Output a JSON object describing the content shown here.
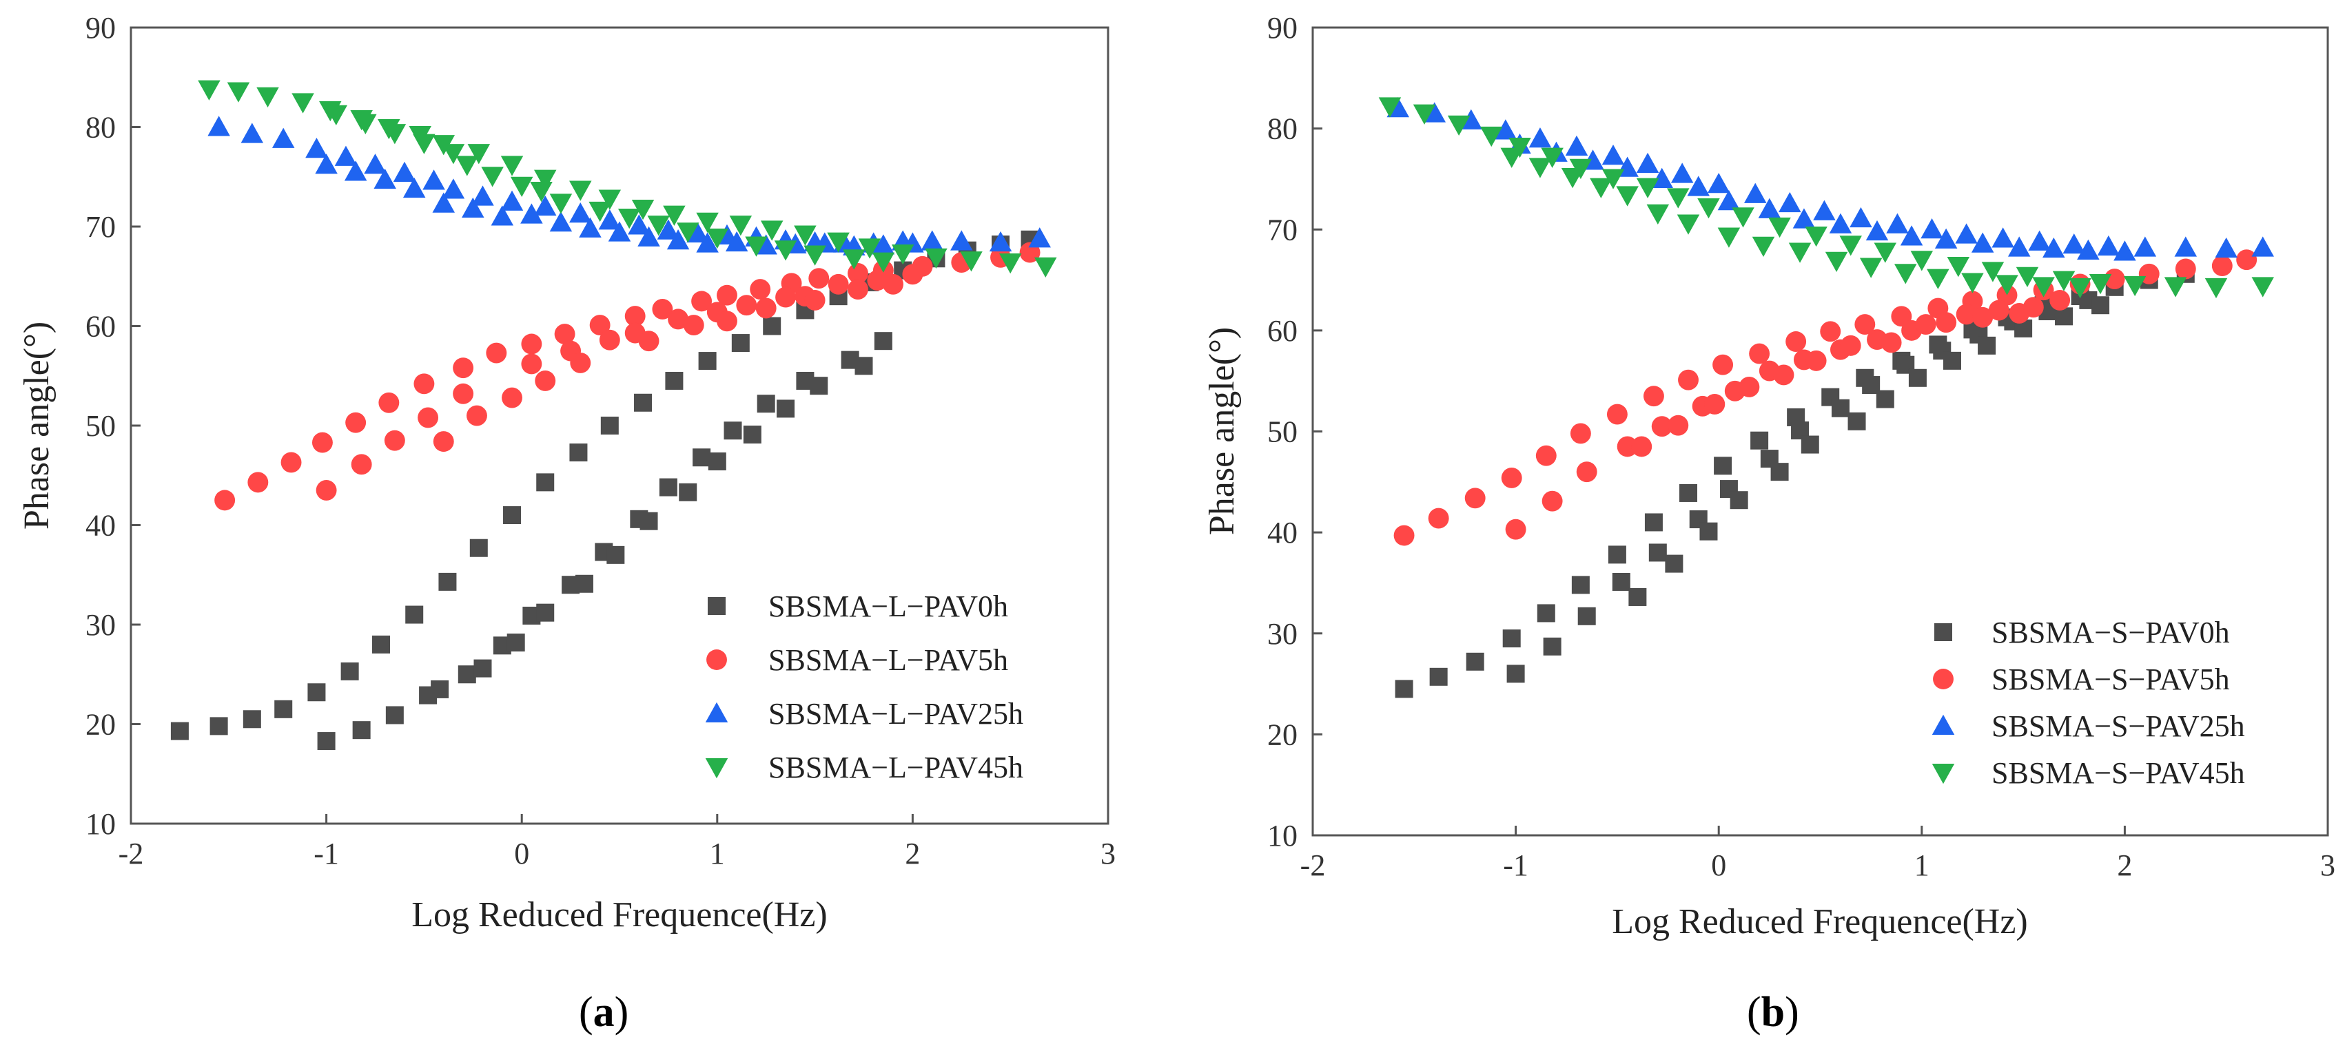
{
  "figure": {
    "panel_labels": [
      "a",
      "b"
    ]
  },
  "chart_data": [
    {
      "panel": "a",
      "type": "scatter",
      "title": "",
      "xlabel": "Log Reduced Frequence(Hz)",
      "ylabel": "Phase angle(°)",
      "xlim": [
        -2,
        3
      ],
      "ylim": [
        10,
        90
      ],
      "xticks": [
        "-2",
        "-1",
        "0",
        "1",
        "2",
        "3"
      ],
      "yticks": [
        "10",
        "20",
        "30",
        "40",
        "50",
        "60",
        "70",
        "80",
        "90"
      ],
      "grid": false,
      "legend_position": "bottom-right",
      "series": [
        {
          "name": "SBSMA−L−PAV0h",
          "marker": "square",
          "color": "#4d4d4d",
          "x": [
            -1.75,
            -1.55,
            -1.38,
            -1.22,
            -1.05,
            -0.88,
            -0.72,
            -0.55,
            -0.38,
            -0.22,
            -0.05,
            0.12,
            0.29,
            0.45,
            0.62,
            0.78,
            0.95,
            1.12,
            1.28,
            1.45,
            1.62,
            1.78,
            1.95,
            2.12,
            2.28,
            2.45,
            2.6,
            -1.0,
            -0.82,
            -0.65,
            -0.48,
            -0.42,
            -0.28,
            -0.2,
            -0.1,
            -0.03,
            0.05,
            0.12,
            0.25,
            0.32,
            0.42,
            0.48,
            0.6,
            0.65,
            0.75,
            0.85,
            0.92,
            1.0,
            1.08,
            1.18,
            1.25,
            1.35,
            1.45,
            1.52,
            1.68,
            1.75,
            1.85
          ],
          "y": [
            19.3,
            19.8,
            20.5,
            21.5,
            23.2,
            25.3,
            28.0,
            31.0,
            34.3,
            37.7,
            41.0,
            44.3,
            47.3,
            50.0,
            52.3,
            54.5,
            56.5,
            58.3,
            60.0,
            61.6,
            63.0,
            64.4,
            65.6,
            66.8,
            67.6,
            68.2,
            68.7,
            18.3,
            19.4,
            20.9,
            22.9,
            23.5,
            25.0,
            25.6,
            27.9,
            28.2,
            30.9,
            31.2,
            34.0,
            34.1,
            37.3,
            37.0,
            40.6,
            40.4,
            43.8,
            43.3,
            46.8,
            46.4,
            49.5,
            49.1,
            52.2,
            51.7,
            54.5,
            54.0,
            56.6,
            56.0,
            58.5
          ]
        },
        {
          "name": "SBSMA−L−PAV5h",
          "marker": "circle",
          "color": "#ff4747",
          "x": [
            -1.52,
            -1.35,
            -1.18,
            -1.02,
            -0.85,
            -0.68,
            -0.5,
            -0.3,
            -0.13,
            0.05,
            0.22,
            0.4,
            0.58,
            0.72,
            0.92,
            1.05,
            1.22,
            1.38,
            1.52,
            1.72,
            1.85,
            2.05,
            2.25,
            2.45,
            2.6,
            -1.0,
            -0.82,
            -0.65,
            -0.48,
            -0.4,
            -0.3,
            -0.23,
            -0.05,
            0.05,
            0.12,
            0.25,
            0.3,
            0.45,
            0.58,
            0.65,
            0.8,
            0.88,
            1.0,
            1.05,
            1.15,
            1.25,
            1.35,
            1.45,
            1.5,
            1.62,
            1.72,
            1.82,
            1.9,
            2.0
          ],
          "y": [
            42.5,
            44.3,
            46.3,
            48.3,
            50.3,
            52.3,
            54.2,
            55.8,
            57.3,
            58.2,
            59.2,
            60.1,
            61.0,
            61.7,
            62.5,
            63.1,
            63.7,
            64.3,
            64.8,
            65.3,
            65.6,
            66.0,
            66.4,
            66.9,
            67.4,
            43.5,
            46.1,
            48.5,
            50.8,
            48.4,
            53.2,
            51.0,
            52.8,
            56.2,
            54.5,
            57.5,
            56.3,
            58.6,
            59.3,
            58.5,
            60.7,
            60.1,
            61.4,
            60.5,
            62.1,
            61.8,
            62.9,
            63.0,
            62.6,
            64.2,
            63.7,
            64.6,
            64.2,
            65.2
          ]
        },
        {
          "name": "SBSMA−L−PAV25h",
          "marker": "triangle-up",
          "color": "#1f64f0",
          "x": [
            -1.55,
            -1.38,
            -1.22,
            -1.05,
            -0.9,
            -0.75,
            -0.6,
            -0.45,
            -0.35,
            -0.2,
            -0.05,
            0.12,
            0.3,
            0.45,
            0.6,
            0.75,
            0.9,
            1.05,
            1.2,
            1.35,
            1.5,
            1.65,
            1.8,
            1.95,
            2.1,
            2.25,
            2.45,
            2.65,
            -1.0,
            -0.85,
            -0.7,
            -0.55,
            -0.4,
            -0.25,
            -0.1,
            0.05,
            0.2,
            0.35,
            0.5,
            0.65,
            0.8,
            0.95,
            1.1,
            1.25,
            1.4,
            1.55,
            1.7,
            1.85,
            2.0
          ],
          "y": [
            80.0,
            79.3,
            78.8,
            77.8,
            77.0,
            76.2,
            75.4,
            74.6,
            73.7,
            73.0,
            72.5,
            72.0,
            71.3,
            70.6,
            70.1,
            69.6,
            69.3,
            69.1,
            68.9,
            68.6,
            68.4,
            68.3,
            68.3,
            68.5,
            68.5,
            68.5,
            68.4,
            68.8,
            76.2,
            75.5,
            74.7,
            73.8,
            72.3,
            71.8,
            71.0,
            71.2,
            70.4,
            69.8,
            69.4,
            68.9,
            68.6,
            68.3,
            68.4,
            68.1,
            68.2,
            68.3,
            68.0,
            68.1,
            68.3
          ]
        },
        {
          "name": "SBSMA−L−PAV45h",
          "marker": "triangle-down",
          "color": "#26b04a",
          "x": [
            -1.6,
            -1.45,
            -1.3,
            -1.12,
            -0.98,
            -0.82,
            -0.68,
            -0.52,
            -0.4,
            -0.22,
            -0.05,
            0.12,
            0.3,
            0.45,
            0.62,
            0.78,
            0.95,
            1.12,
            1.28,
            1.45,
            1.62,
            1.78,
            1.95,
            2.12,
            2.3,
            2.5,
            2.68,
            -0.95,
            -0.8,
            -0.65,
            -0.5,
            -0.35,
            -0.28,
            -0.15,
            0.0,
            0.1,
            0.2,
            0.4,
            0.55,
            0.7,
            0.85,
            1.0,
            1.2,
            1.35,
            1.5,
            1.7,
            1.85
          ],
          "y": [
            83.8,
            83.6,
            83.1,
            82.5,
            81.7,
            80.8,
            79.9,
            79.2,
            78.3,
            77.4,
            76.2,
            74.8,
            73.7,
            72.8,
            71.8,
            71.2,
            70.5,
            70.2,
            69.7,
            69.2,
            68.5,
            67.9,
            67.3,
            66.9,
            66.6,
            66.4,
            66.0,
            81.3,
            80.4,
            79.4,
            78.4,
            77.4,
            76.2,
            75.1,
            74.1,
            73.6,
            72.4,
            71.6,
            70.9,
            70.2,
            69.5,
            68.9,
            68.1,
            67.7,
            67.2,
            66.8,
            66.5
          ]
        }
      ]
    },
    {
      "panel": "b",
      "type": "scatter",
      "title": "",
      "xlabel": "Log Reduced Frequence(Hz)",
      "ylabel": "Phase angle(°)",
      "xlim": [
        -2,
        3
      ],
      "ylim": [
        10,
        90
      ],
      "xticks": [
        "-2",
        "-1",
        "0",
        "1",
        "2",
        "3"
      ],
      "yticks": [
        "10",
        "20",
        "30",
        "40",
        "50",
        "60",
        "70",
        "80",
        "90"
      ],
      "grid": false,
      "legend_position": "bottom-right",
      "series": [
        {
          "name": "SBSMA−S−PAV0h",
          "marker": "square",
          "color": "#4d4d4d",
          "x": [
            -1.55,
            -1.38,
            -1.2,
            -1.02,
            -0.85,
            -0.68,
            -0.5,
            -0.32,
            -0.15,
            0.02,
            0.2,
            0.38,
            0.55,
            0.72,
            0.9,
            1.08,
            1.25,
            1.42,
            1.6,
            1.78,
            1.95,
            2.12,
            2.3,
            -1.0,
            -0.82,
            -0.65,
            -0.48,
            -0.4,
            -0.3,
            -0.22,
            -0.1,
            -0.05,
            0.05,
            0.1,
            0.25,
            0.3,
            0.4,
            0.45,
            0.6,
            0.68,
            0.75,
            0.82,
            0.92,
            0.98,
            1.1,
            1.15,
            1.28,
            1.32,
            1.45,
            1.5,
            1.62,
            1.7,
            1.82,
            1.88
          ],
          "y": [
            24.5,
            25.7,
            27.2,
            29.5,
            32.0,
            34.8,
            37.8,
            41.0,
            43.9,
            46.6,
            49.1,
            51.4,
            53.4,
            55.3,
            57.0,
            58.6,
            60.1,
            61.3,
            62.5,
            63.4,
            64.3,
            65.0,
            65.6,
            26.0,
            28.7,
            31.7,
            35.1,
            33.6,
            38.0,
            36.9,
            41.3,
            40.1,
            44.3,
            43.2,
            47.3,
            46.0,
            50.1,
            48.7,
            52.3,
            51.0,
            54.6,
            53.2,
            56.6,
            55.3,
            58.0,
            57.0,
            59.6,
            58.5,
            60.9,
            60.2,
            61.9,
            61.4,
            63.0,
            62.5
          ]
        },
        {
          "name": "SBSMA−S−PAV5h",
          "marker": "circle",
          "color": "#ff4747",
          "x": [
            -1.55,
            -1.38,
            -1.2,
            -1.02,
            -0.85,
            -0.68,
            -0.5,
            -0.32,
            -0.15,
            0.02,
            0.2,
            0.38,
            0.55,
            0.72,
            0.9,
            1.08,
            1.25,
            1.42,
            1.6,
            1.78,
            1.95,
            2.12,
            2.3,
            2.48,
            2.6,
            -1.0,
            -0.82,
            -0.65,
            -0.45,
            -0.38,
            -0.28,
            -0.2,
            -0.08,
            -0.02,
            0.08,
            0.15,
            0.25,
            0.32,
            0.42,
            0.48,
            0.6,
            0.65,
            0.78,
            0.85,
            0.95,
            1.02,
            1.12,
            1.22,
            1.3,
            1.38,
            1.48,
            1.55,
            1.68
          ],
          "y": [
            39.7,
            41.4,
            43.4,
            45.4,
            47.6,
            49.8,
            51.7,
            53.5,
            55.1,
            56.6,
            57.7,
            58.9,
            59.9,
            60.6,
            61.4,
            62.2,
            62.9,
            63.5,
            64.0,
            64.6,
            65.1,
            65.6,
            66.1,
            66.4,
            67.0,
            40.3,
            43.1,
            46.0,
            48.5,
            48.5,
            50.5,
            50.6,
            52.5,
            52.7,
            54.0,
            54.4,
            56.0,
            55.6,
            57.1,
            57.0,
            58.1,
            58.5,
            59.1,
            58.8,
            60.0,
            60.6,
            60.8,
            61.6,
            61.3,
            62.0,
            61.7,
            62.3,
            63.0
          ]
        },
        {
          "name": "SBSMA−S−PAV25h",
          "marker": "triangle-up",
          "color": "#1f64f0",
          "x": [
            -1.58,
            -1.4,
            -1.22,
            -1.05,
            -0.88,
            -0.7,
            -0.52,
            -0.35,
            -0.18,
            0.0,
            0.18,
            0.35,
            0.52,
            0.7,
            0.88,
            1.05,
            1.22,
            1.4,
            1.58,
            1.75,
            1.92,
            2.1,
            2.3,
            2.5,
            2.68,
            -0.98,
            -0.8,
            -0.62,
            -0.45,
            -0.28,
            -0.1,
            0.05,
            0.25,
            0.42,
            0.6,
            0.78,
            0.95,
            1.12,
            1.3,
            1.48,
            1.65,
            1.82,
            2.0
          ],
          "y": [
            82.0,
            81.5,
            80.8,
            79.8,
            79.0,
            78.2,
            77.3,
            76.5,
            75.5,
            74.5,
            73.5,
            72.6,
            71.8,
            71.1,
            70.5,
            70.0,
            69.5,
            69.1,
            68.8,
            68.5,
            68.3,
            68.2,
            68.2,
            68.1,
            68.2,
            78.4,
            77.6,
            76.8,
            76.1,
            75.0,
            74.2,
            72.8,
            72.0,
            71.0,
            70.5,
            69.8,
            69.3,
            69.0,
            68.6,
            68.2,
            68.1,
            67.9,
            67.8
          ]
        },
        {
          "name": "SBSMA−S−PAV45h",
          "marker": "triangle-down",
          "color": "#26b04a",
          "x": [
            -1.62,
            -1.45,
            -1.28,
            -1.12,
            -0.98,
            -0.82,
            -0.68,
            -0.52,
            -0.35,
            -0.2,
            -0.05,
            0.12,
            0.3,
            0.48,
            0.65,
            0.82,
            1.0,
            1.18,
            1.35,
            1.52,
            1.7,
            1.88,
            2.05,
            2.25,
            2.45,
            2.68,
            -1.02,
            -0.88,
            -0.72,
            -0.58,
            -0.45,
            -0.3,
            -0.15,
            0.05,
            0.22,
            0.4,
            0.58,
            0.75,
            0.92,
            1.08,
            1.25,
            1.42,
            1.6,
            1.78
          ],
          "y": [
            82.2,
            81.5,
            80.4,
            79.3,
            78.2,
            77.2,
            76.1,
            75.1,
            74.2,
            73.2,
            72.2,
            71.3,
            70.3,
            69.4,
            68.5,
            67.8,
            67.0,
            66.4,
            65.9,
            65.4,
            65.0,
            64.7,
            64.5,
            64.4,
            64.3,
            64.4,
            77.2,
            76.2,
            75.2,
            74.2,
            73.4,
            71.6,
            70.6,
            69.3,
            68.4,
            67.8,
            66.9,
            66.3,
            65.7,
            65.2,
            64.8,
            64.6,
            64.4,
            64.3
          ]
        }
      ]
    }
  ]
}
